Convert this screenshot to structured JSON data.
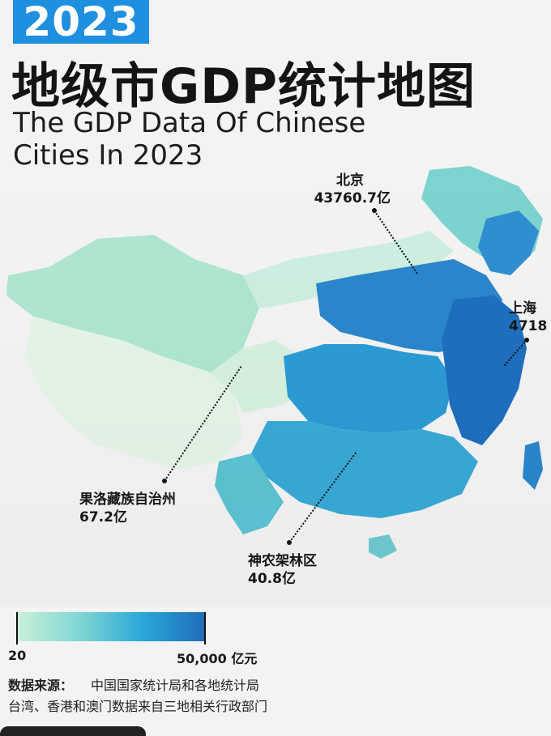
{
  "header": {
    "year": "2023",
    "title_cn": "地级市GDP统计地图",
    "title_en": "The GDP Data Of Chinese Cities In 2023"
  },
  "callouts": [
    {
      "name": "北京",
      "value": "43760.7亿"
    },
    {
      "name": "上海",
      "value": "4718"
    },
    {
      "name": "果洛藏族自治州",
      "value": "67.2亿"
    },
    {
      "name": "神农架林区",
      "value": "40.8亿"
    }
  ],
  "legend": {
    "min": "20",
    "max": "50,000 亿元",
    "colors": [
      "#c8f0d8",
      "#7fd6d4",
      "#2aa7d8",
      "#1f6bb8"
    ]
  },
  "source": {
    "label": "数据来源：",
    "line1": "中国国家统计局和各地统计局",
    "line2": "台湾、香港和澳门数据来自三地相关行政部门"
  }
}
